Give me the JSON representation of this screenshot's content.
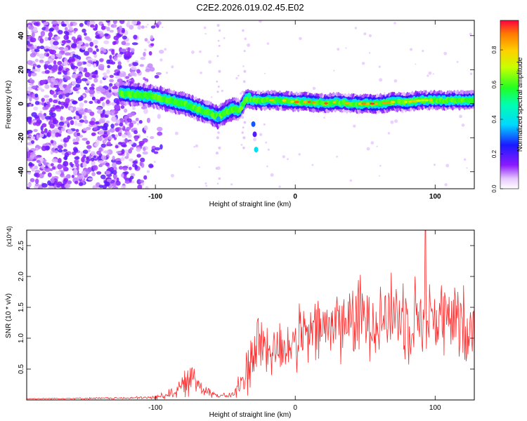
{
  "title": "C2E2.2026.019.02.45.E02",
  "chart_data": [
    {
      "type": "heatmap",
      "title": "C2E2.2026.019.02.45.E02",
      "xlabel": "Height of straight line (km)",
      "ylabel": "Frequency (Hz)",
      "xlim": [
        -192,
        128
      ],
      "ylim": [
        -50,
        49
      ],
      "xticks": [
        -100,
        0,
        100
      ],
      "xtick_labels": [
        "-100",
        "0",
        "100"
      ],
      "yticks": [
        -40,
        -20,
        0,
        20,
        40
      ],
      "ytick_labels": [
        "-40",
        "-20",
        "0",
        "20",
        "40"
      ],
      "colorbar": {
        "label": "Normalized spectral amplitude",
        "range": [
          0,
          0.97
        ],
        "ticks": [
          0.0,
          0.2,
          0.4,
          0.6,
          0.8
        ],
        "tick_labels": [
          "0.0",
          "0.2",
          "0.4",
          "0.6",
          "0.8"
        ]
      },
      "ridge": {
        "x": [
          -125,
          -110,
          -100,
          -90,
          -80,
          -70,
          -60,
          -55,
          -50,
          -45,
          -40,
          -35,
          -30,
          -25,
          -20,
          -10,
          0,
          10,
          20,
          30,
          40,
          50,
          60,
          70,
          80,
          90,
          100,
          110,
          120,
          128
        ],
        "freq": [
          6,
          5,
          4,
          2,
          0,
          -3,
          -6,
          -8,
          -5,
          -3,
          -4,
          3,
          2,
          2,
          2,
          2,
          1,
          1,
          0,
          1,
          0,
          0,
          0,
          1,
          1,
          2,
          2,
          2,
          2,
          2
        ]
      },
      "noise_region_x": [
        -192,
        -125
      ]
    },
    {
      "type": "line",
      "xlabel": "Height of straight line (km)",
      "ylabel": "SNR (10 * v/v)",
      "y_multiplier": "(x10^4)",
      "xlim": [
        -192,
        128
      ],
      "ylim": [
        0,
        2.75
      ],
      "xticks": [
        -100,
        0,
        100
      ],
      "xtick_labels": [
        "-100",
        "0",
        "100"
      ],
      "yticks": [
        0.5,
        1.0,
        1.5,
        2.0,
        2.5
      ],
      "ytick_labels": [
        "0.5",
        "1.0",
        "1.5",
        "2.0",
        "2.5"
      ],
      "color": "#ff2a2a",
      "envelope": {
        "x": [
          -192,
          -120,
          -100,
          -90,
          -80,
          -75,
          -70,
          -65,
          -55,
          -45,
          -40,
          -35,
          -32,
          -28,
          -24,
          -20,
          -15,
          -10,
          0,
          10,
          20,
          30,
          40,
          50,
          60,
          70,
          80,
          90,
          100,
          110,
          120,
          128
        ],
        "base": [
          0.02,
          0.03,
          0.04,
          0.1,
          0.22,
          0.35,
          0.3,
          0.18,
          0.06,
          0.08,
          0.2,
          0.45,
          0.7,
          0.85,
          0.95,
          0.8,
          0.8,
          0.85,
          0.95,
          1.05,
          1.15,
          1.25,
          1.3,
          1.35,
          1.35,
          1.4,
          1.35,
          1.35,
          1.35,
          1.3,
          1.2,
          1.2
        ],
        "amp": [
          0.01,
          0.02,
          0.04,
          0.1,
          0.25,
          0.32,
          0.3,
          0.15,
          0.04,
          0.06,
          0.3,
          0.5,
          0.7,
          0.75,
          0.75,
          0.55,
          0.55,
          0.6,
          0.6,
          0.65,
          0.7,
          0.75,
          0.8,
          0.8,
          0.8,
          0.8,
          0.85,
          0.85,
          0.8,
          0.8,
          0.8,
          0.75
        ]
      },
      "peak": {
        "x": 93,
        "y": 2.74
      }
    }
  ]
}
